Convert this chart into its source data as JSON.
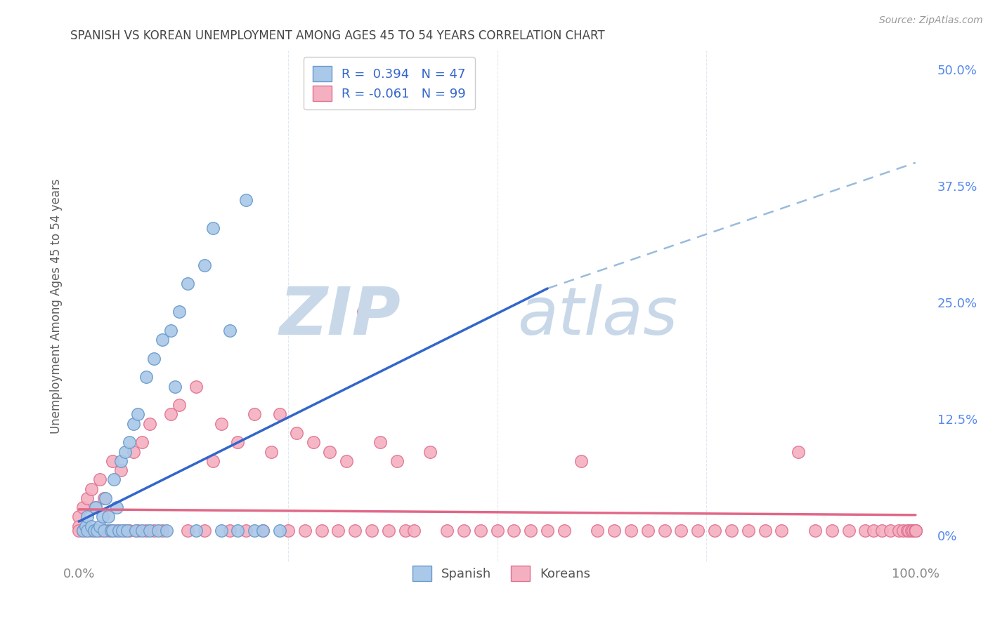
{
  "title": "SPANISH VS KOREAN UNEMPLOYMENT AMONG AGES 45 TO 54 YEARS CORRELATION CHART",
  "source": "Source: ZipAtlas.com",
  "ylabel": "Unemployment Among Ages 45 to 54 years",
  "xlim": [
    -0.01,
    1.02
  ],
  "ylim": [
    -0.028,
    0.52
  ],
  "yticks_right": [
    0.0,
    0.125,
    0.25,
    0.375,
    0.5
  ],
  "yticklabels_right": [
    "0%",
    "12.5%",
    "25.0%",
    "37.5%",
    "50.0%"
  ],
  "xtick_left_label": "0.0%",
  "xtick_right_label": "100.0%",
  "spanish_color": "#aac8e8",
  "spanish_edge_color": "#6699cc",
  "korean_color": "#f4b0c0",
  "korean_edge_color": "#e07090",
  "title_color": "#444444",
  "source_color": "#999999",
  "blue_line_color": "#3366cc",
  "pink_line_color": "#e06888",
  "dashed_line_color": "#99bbdd",
  "grid_color": "#e0e8f0",
  "grid_linestyle": "--",
  "watermark_zip_color": "#c8d8e8",
  "watermark_atlas_color": "#c8d8e8",
  "spanish_x": [
    0.005,
    0.008,
    0.01,
    0.01,
    0.015,
    0.018,
    0.02,
    0.022,
    0.025,
    0.028,
    0.03,
    0.032,
    0.035,
    0.038,
    0.04,
    0.042,
    0.045,
    0.048,
    0.05,
    0.052,
    0.055,
    0.058,
    0.06,
    0.065,
    0.068,
    0.07,
    0.075,
    0.08,
    0.085,
    0.09,
    0.095,
    0.1,
    0.105,
    0.11,
    0.115,
    0.12,
    0.13,
    0.14,
    0.15,
    0.16,
    0.17,
    0.18,
    0.19,
    0.2,
    0.21,
    0.22,
    0.24
  ],
  "spanish_y": [
    0.005,
    0.01,
    0.005,
    0.02,
    0.01,
    0.005,
    0.03,
    0.005,
    0.01,
    0.02,
    0.005,
    0.04,
    0.02,
    0.005,
    0.005,
    0.06,
    0.03,
    0.005,
    0.08,
    0.005,
    0.09,
    0.005,
    0.1,
    0.12,
    0.005,
    0.13,
    0.005,
    0.17,
    0.005,
    0.19,
    0.005,
    0.21,
    0.005,
    0.22,
    0.16,
    0.24,
    0.27,
    0.005,
    0.29,
    0.33,
    0.005,
    0.22,
    0.005,
    0.36,
    0.005,
    0.005,
    0.005
  ],
  "korean_x": [
    0.0,
    0.0,
    0.0,
    0.005,
    0.005,
    0.01,
    0.01,
    0.015,
    0.015,
    0.02,
    0.02,
    0.025,
    0.025,
    0.03,
    0.03,
    0.035,
    0.04,
    0.04,
    0.045,
    0.05,
    0.055,
    0.06,
    0.065,
    0.07,
    0.075,
    0.08,
    0.085,
    0.09,
    0.1,
    0.11,
    0.12,
    0.13,
    0.14,
    0.15,
    0.16,
    0.17,
    0.18,
    0.19,
    0.2,
    0.21,
    0.22,
    0.23,
    0.24,
    0.25,
    0.26,
    0.27,
    0.28,
    0.29,
    0.3,
    0.31,
    0.32,
    0.33,
    0.34,
    0.35,
    0.36,
    0.37,
    0.38,
    0.39,
    0.4,
    0.42,
    0.44,
    0.46,
    0.48,
    0.5,
    0.52,
    0.54,
    0.56,
    0.58,
    0.6,
    0.62,
    0.64,
    0.66,
    0.68,
    0.7,
    0.72,
    0.74,
    0.76,
    0.78,
    0.8,
    0.82,
    0.84,
    0.86,
    0.88,
    0.9,
    0.92,
    0.94,
    0.95,
    0.96,
    0.97,
    0.98,
    0.985,
    0.99,
    0.992,
    0.995,
    0.997,
    0.999,
    1.0,
    1.0,
    1.0
  ],
  "korean_y": [
    0.02,
    0.01,
    0.005,
    0.03,
    0.005,
    0.04,
    0.005,
    0.05,
    0.005,
    0.03,
    0.005,
    0.06,
    0.005,
    0.04,
    0.005,
    0.005,
    0.08,
    0.005,
    0.005,
    0.07,
    0.005,
    0.005,
    0.09,
    0.005,
    0.1,
    0.005,
    0.12,
    0.005,
    0.005,
    0.13,
    0.14,
    0.005,
    0.16,
    0.005,
    0.08,
    0.12,
    0.005,
    0.1,
    0.005,
    0.13,
    0.005,
    0.09,
    0.13,
    0.005,
    0.11,
    0.005,
    0.1,
    0.005,
    0.09,
    0.005,
    0.08,
    0.005,
    0.24,
    0.005,
    0.1,
    0.005,
    0.08,
    0.005,
    0.005,
    0.09,
    0.005,
    0.005,
    0.005,
    0.005,
    0.005,
    0.005,
    0.005,
    0.005,
    0.08,
    0.005,
    0.005,
    0.005,
    0.005,
    0.005,
    0.005,
    0.005,
    0.005,
    0.005,
    0.005,
    0.005,
    0.005,
    0.09,
    0.005,
    0.005,
    0.005,
    0.005,
    0.005,
    0.005,
    0.005,
    0.005,
    0.005,
    0.005,
    0.005,
    0.005,
    0.005,
    0.005,
    0.005,
    0.005,
    0.005
  ],
  "blue_line_x0": 0.0,
  "blue_line_y0": 0.015,
  "blue_line_x1": 0.56,
  "blue_line_y1": 0.265,
  "dash_line_x0": 0.56,
  "dash_line_y0": 0.265,
  "dash_line_x1": 1.0,
  "dash_line_y1": 0.4,
  "pink_line_x0": 0.0,
  "pink_line_y0": 0.028,
  "pink_line_x1": 1.0,
  "pink_line_y1": 0.022
}
